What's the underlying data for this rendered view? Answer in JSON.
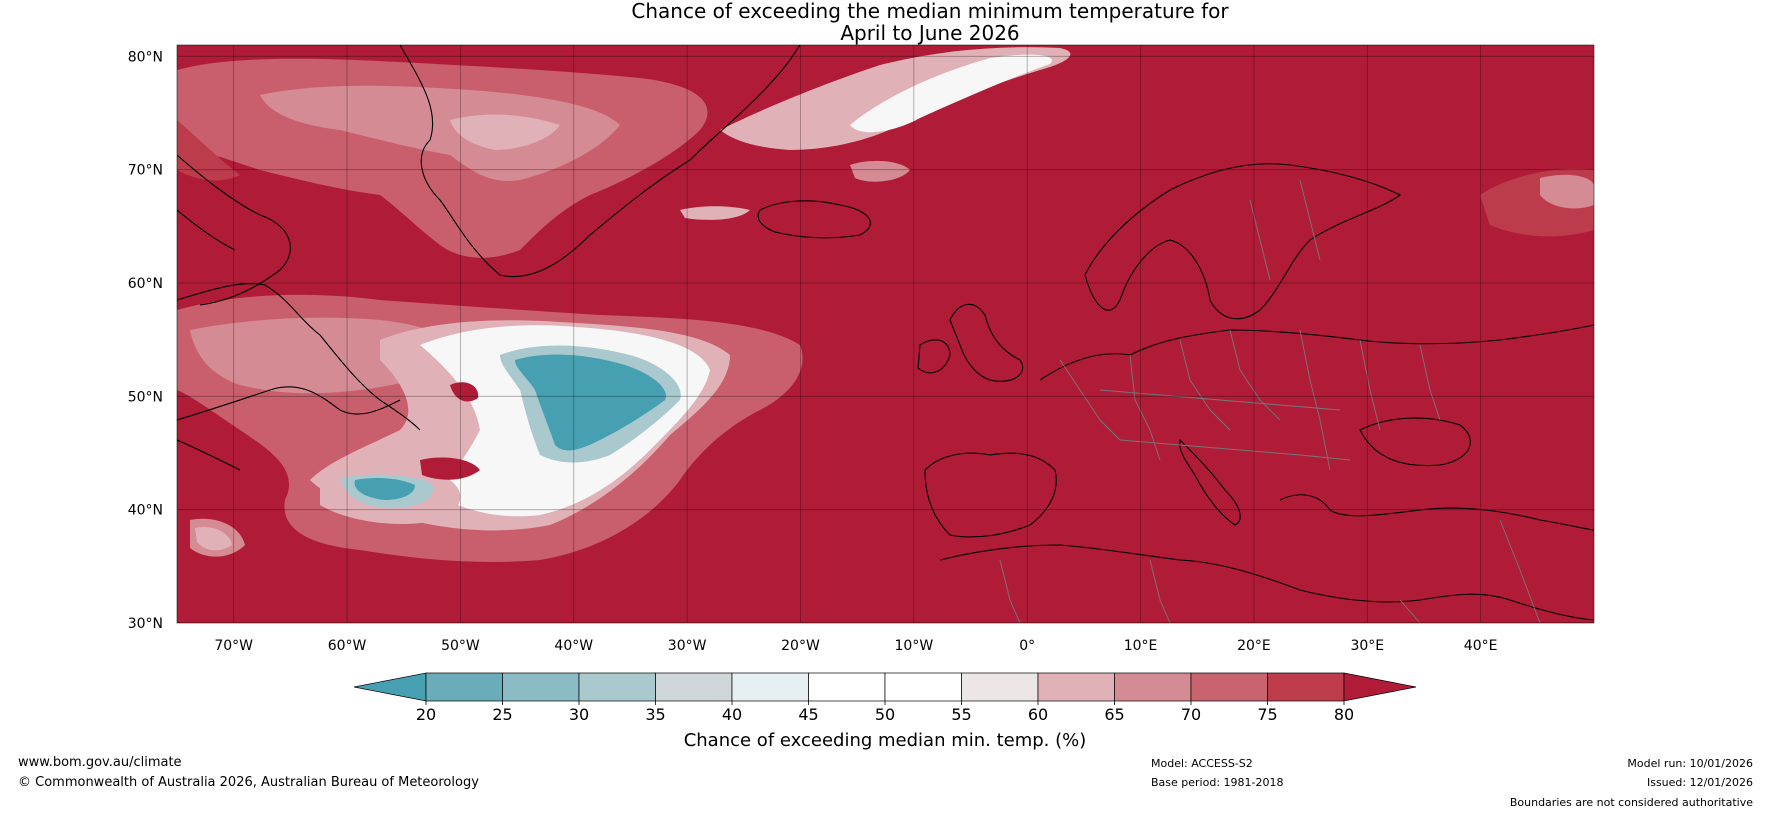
{
  "title": {
    "line1": "Chance of exceeding the median minimum temperature for",
    "line2": "April to June 2026"
  },
  "map": {
    "lat_labels": [
      "80°N",
      "70°N",
      "60°N",
      "50°N",
      "40°N",
      "30°N"
    ],
    "lon_labels": [
      "70°W",
      "60°W",
      "50°W",
      "40°W",
      "30°W",
      "20°W",
      "10°W",
      "0°",
      "10°E",
      "20°E",
      "30°E",
      "40°E"
    ],
    "lat_range": [
      30,
      81
    ],
    "lon_range": [
      -75,
      50
    ],
    "colors": {
      "base": "#b01c38",
      "ocean_light": "#c95e6c",
      "pale": "#e0b2b8",
      "white": "#f7f7f7",
      "teal": "#46a0b2",
      "coast": "#000000",
      "border": "#777777"
    }
  },
  "colorbar": {
    "ticks": [
      "20",
      "25",
      "30",
      "35",
      "40",
      "45",
      "50",
      "55",
      "60",
      "65",
      "70",
      "75",
      "80"
    ],
    "colors": [
      "#46a0b2",
      "#6aacba",
      "#8bbcc6",
      "#aac9cf",
      "#cfd7da",
      "#e6eff1",
      "#ffffff",
      "#ffffff",
      "#ece6e7",
      "#e0b2b8",
      "#d48b94",
      "#c9646f",
      "#bd3c4c",
      "#b01c38"
    ],
    "label": "Chance of exceeding median min. temp. (%)"
  },
  "footer": {
    "url": "www.bom.gov.au/climate",
    "copyright": "© Commonwealth of Australia 2026, Australian Bureau of Meteorology",
    "model": "Model: ACCESS-S2",
    "base_period": "Base period: 1981-2018",
    "model_run": "Model run: 10/01/2026",
    "issued": "Issued: 12/01/2026",
    "disclaimer": "Boundaries are not considered authoritative"
  }
}
